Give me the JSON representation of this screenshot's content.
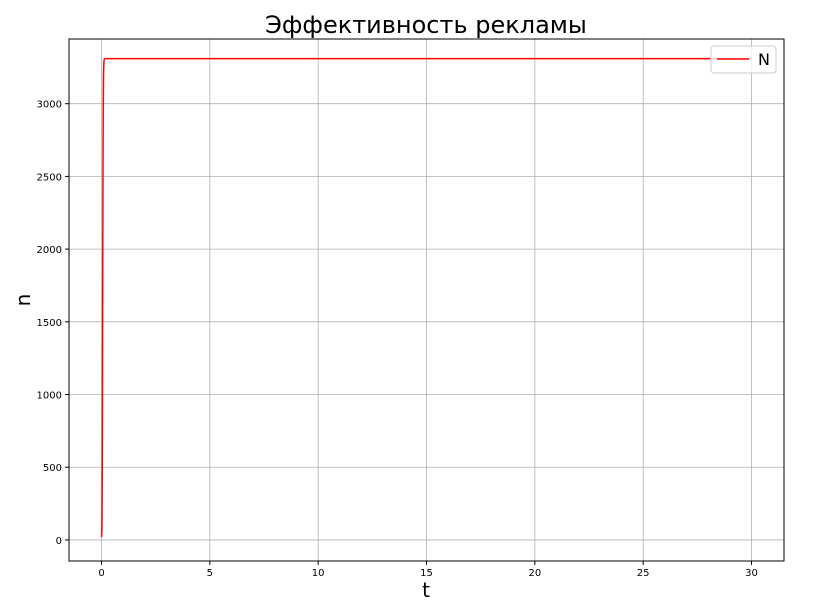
{
  "chart_data": {
    "type": "line",
    "title": "Эффективность рекламы",
    "xlabel": "t",
    "ylabel": "n",
    "xlim": [
      -1.5,
      31.5
    ],
    "ylim": [
      -145,
      3445
    ],
    "xticks": [
      0,
      5,
      10,
      15,
      20,
      25,
      30
    ],
    "yticks": [
      0,
      500,
      1000,
      1500,
      2000,
      2500,
      3000
    ],
    "grid": true,
    "legend_position": "top-right",
    "series": [
      {
        "name": "N",
        "color": "#ff0000",
        "x": [
          0,
          0.01,
          0.02,
          0.03,
          0.04,
          0.05,
          0.06,
          0.07,
          0.08,
          0.09,
          0.1,
          0.11,
          0.12,
          0.13,
          0.14,
          0.15,
          0.16,
          0.18,
          0.2,
          0.25,
          0.3,
          1,
          5,
          10,
          15,
          20,
          25,
          30
        ],
        "y": [
          20,
          40,
          100,
          300,
          700,
          1300,
          2000,
          2600,
          2950,
          3150,
          3240,
          3280,
          3298,
          3305,
          3308,
          3309,
          3310,
          3310,
          3310,
          3310,
          3310,
          3310,
          3310,
          3310,
          3310,
          3310,
          3310,
          3310
        ]
      }
    ]
  }
}
